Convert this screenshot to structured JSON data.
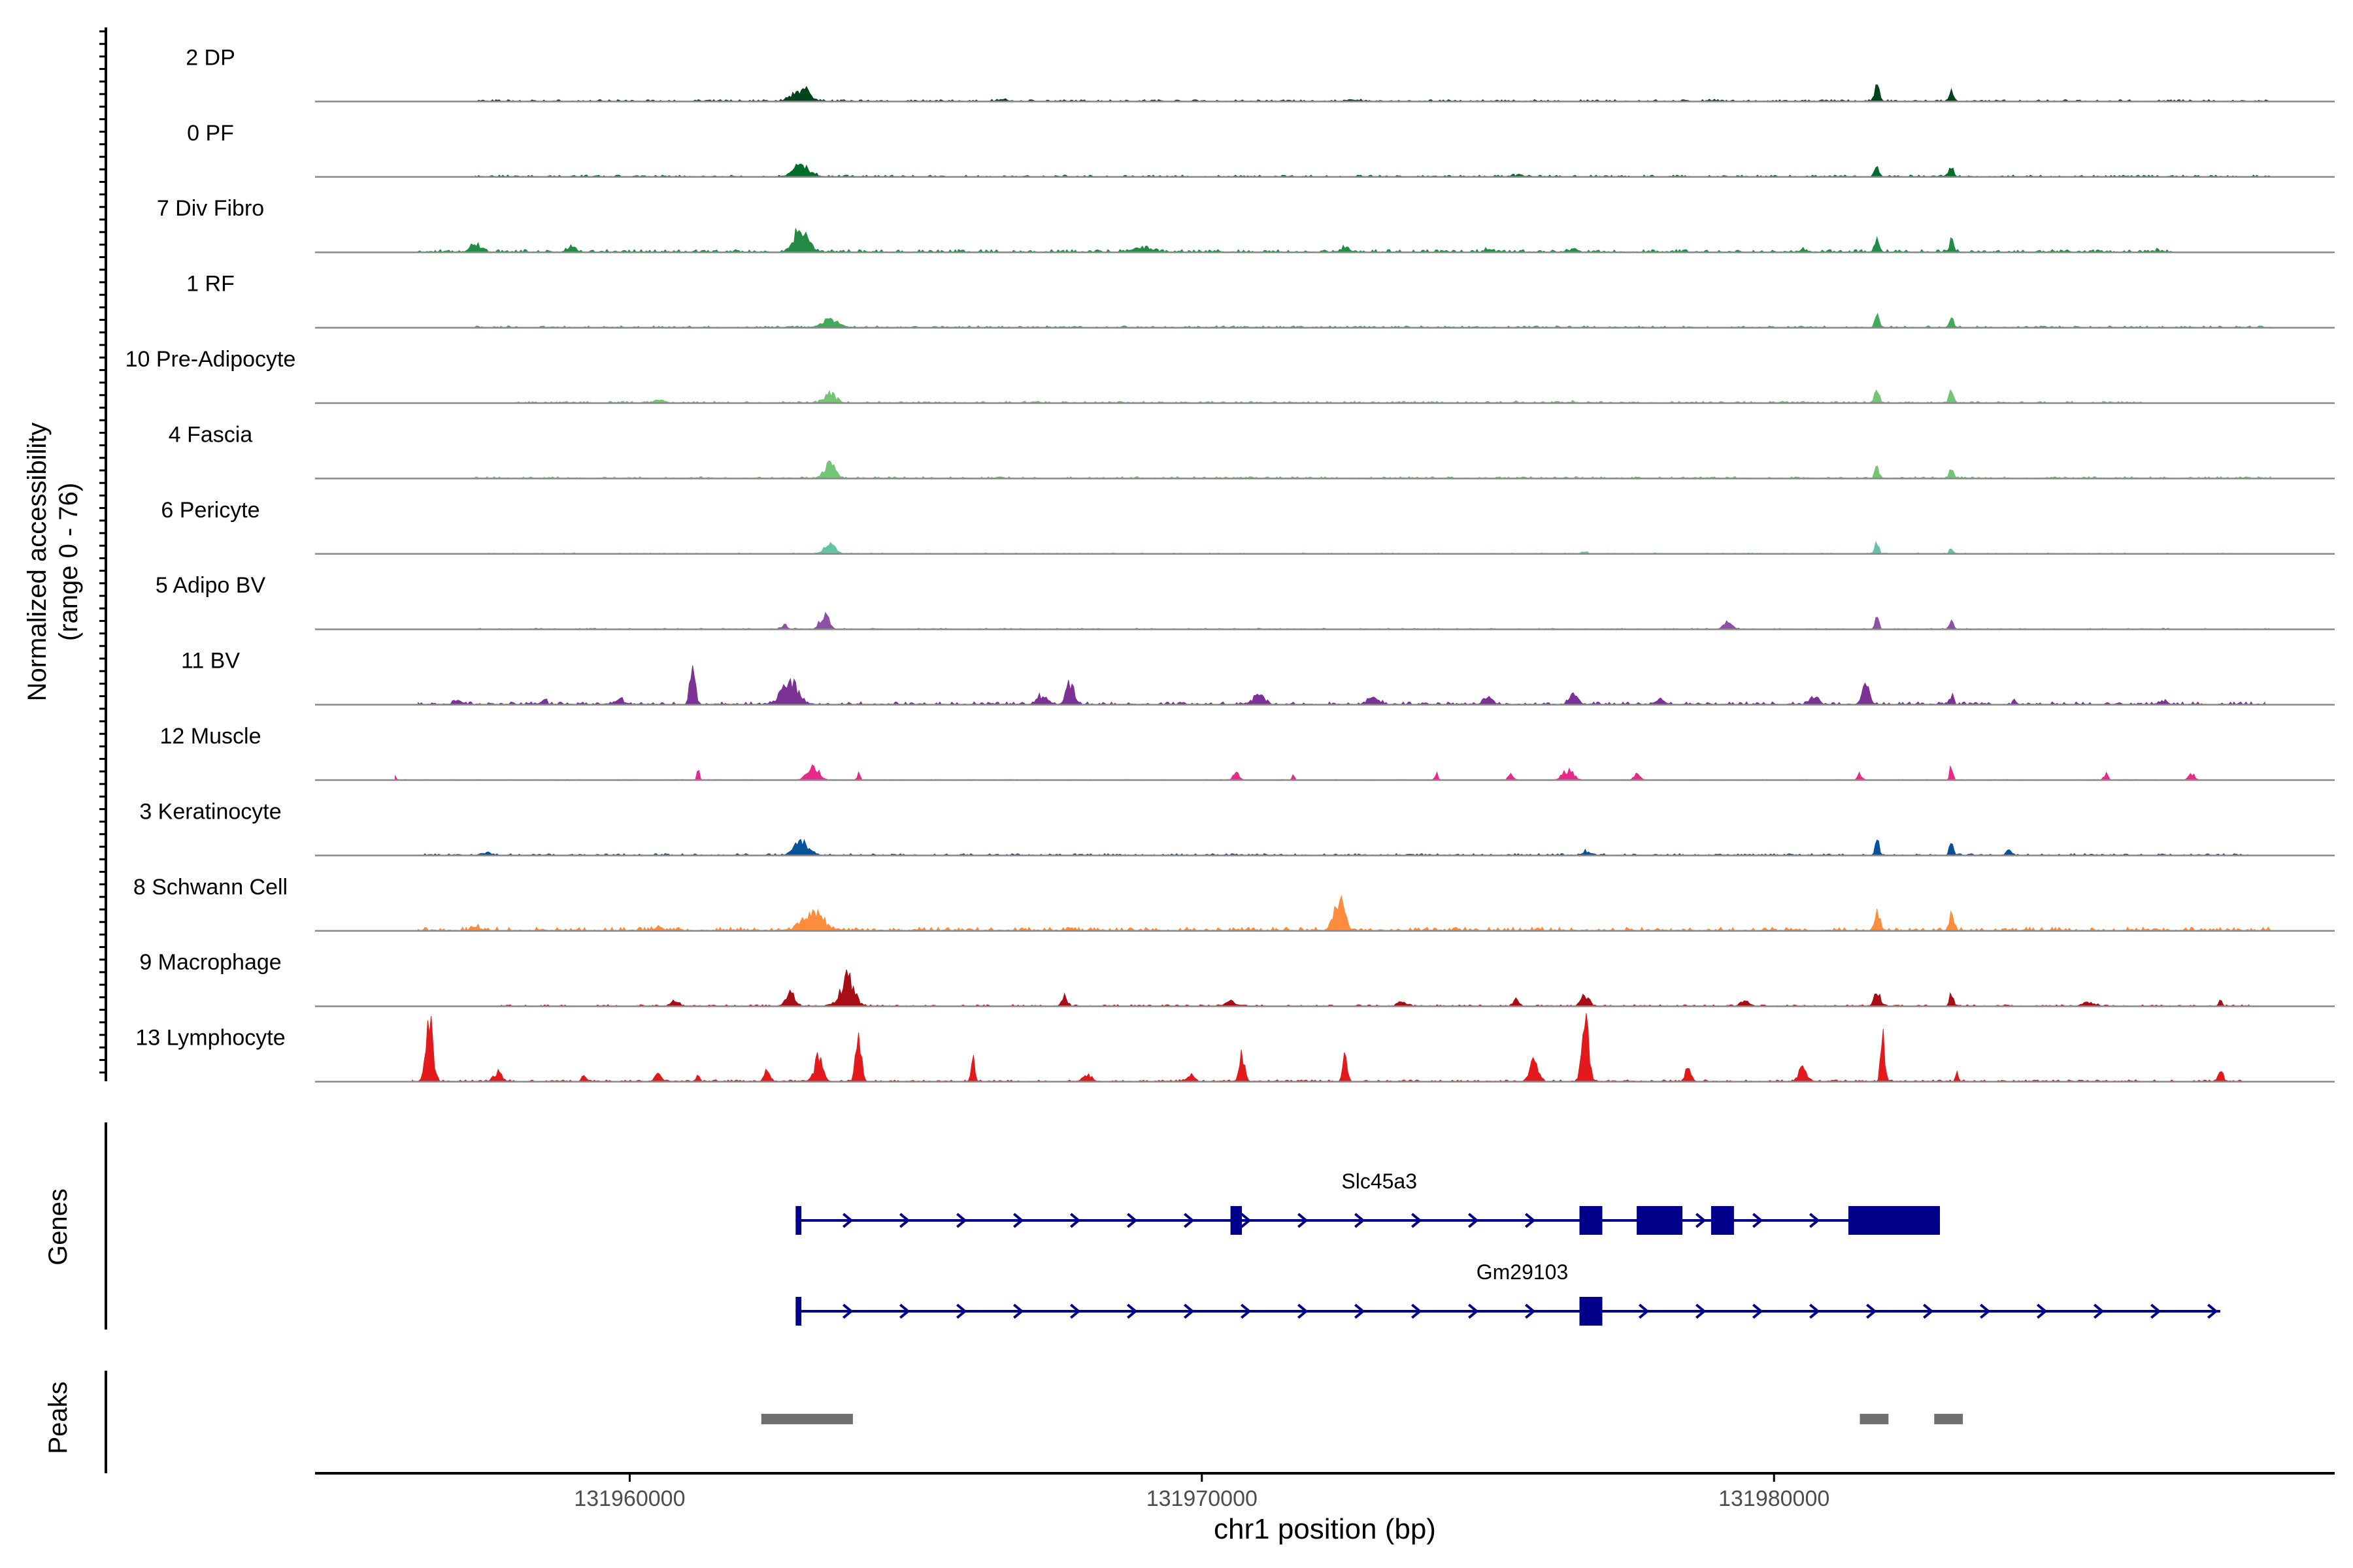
{
  "chart_data": {
    "type": "area",
    "title": "",
    "ylabel_line1": "Normalized accessibility",
    "ylabel_line2": "(range 0 - 76)",
    "yrange": [
      0,
      76
    ],
    "xlabel": "chr1 position (bp)",
    "xlim": [
      131954500,
      131989800
    ],
    "xticks": [
      131960000,
      131970000,
      131980000
    ],
    "xtick_labels": [
      "131960000",
      "131970000",
      "131980000"
    ],
    "tracks": [
      {
        "name": "2 DP",
        "color": "#00441b",
        "baseline": 1.0,
        "start": 131957300,
        "end": 131988700,
        "peaks": [
          [
            131963000,
            8,
            600
          ],
          [
            131981800,
            10,
            160
          ],
          [
            131983100,
            7,
            160
          ],
          [
            131978900,
            1,
            300
          ],
          [
            131966500,
            1,
            400
          ],
          [
            131972700,
            1,
            400
          ]
        ]
      },
      {
        "name": "0 PF",
        "color": "#006d2c",
        "baseline": 1.0,
        "start": 131957300,
        "end": 131988700,
        "peaks": [
          [
            131963000,
            7,
            600
          ],
          [
            131981800,
            8,
            160
          ],
          [
            131983100,
            6,
            160
          ],
          [
            131975500,
            1,
            400
          ]
        ]
      },
      {
        "name": "7 Div Fibro",
        "color": "#238b45",
        "baseline": 1.5,
        "start": 131956300,
        "end": 131987000,
        "peaks": [
          [
            131963000,
            16,
            500
          ],
          [
            131981800,
            8,
            150
          ],
          [
            131983100,
            8,
            150
          ],
          [
            131957300,
            4,
            400
          ],
          [
            131959000,
            3,
            300
          ],
          [
            131969000,
            3,
            500
          ],
          [
            131972500,
            3,
            300
          ],
          [
            131975000,
            2,
            200
          ],
          [
            131976500,
            2,
            300
          ],
          [
            131980500,
            2,
            200
          ],
          [
            131986700,
            3,
            80
          ]
        ]
      },
      {
        "name": "1 RF",
        "color": "#41ab5d",
        "baseline": 1.0,
        "start": 131957300,
        "end": 131988700,
        "peaks": [
          [
            131963500,
            5,
            600
          ],
          [
            131981800,
            8,
            150
          ],
          [
            131983100,
            7,
            150
          ]
        ]
      },
      {
        "name": "10 Pre-Adipocyte",
        "color": "#74c476",
        "baseline": 1.0,
        "start": 131958000,
        "end": 131986500,
        "peaks": [
          [
            131963500,
            6,
            400
          ],
          [
            131981800,
            10,
            150
          ],
          [
            131983100,
            10,
            150
          ],
          [
            131960500,
            2,
            300
          ],
          [
            131975500,
            1,
            100
          ],
          [
            131976500,
            1,
            100
          ]
        ]
      },
      {
        "name": "4 Fascia",
        "color": "#74c476",
        "baseline": 1.0,
        "start": 131957300,
        "end": 131988700,
        "peaks": [
          [
            131963500,
            9,
            400
          ],
          [
            131981800,
            8,
            150
          ],
          [
            131983100,
            7,
            150
          ]
        ]
      },
      {
        "name": "6 Pericyte",
        "color": "#66c2a4",
        "baseline": 0.5,
        "start": 131957300,
        "end": 131988700,
        "peaks": [
          [
            131963500,
            6,
            400
          ],
          [
            131981800,
            10,
            120
          ],
          [
            131983100,
            4,
            120
          ],
          [
            131976700,
            1,
            200
          ]
        ]
      },
      {
        "name": "5 Adipo BV",
        "color": "#8c51a6",
        "baseline": 0.5,
        "start": 131957300,
        "end": 131988700,
        "peaks": [
          [
            131963400,
            10,
            300
          ],
          [
            131979200,
            5,
            300
          ],
          [
            131981800,
            8,
            140
          ],
          [
            131983100,
            6,
            140
          ],
          [
            131962700,
            3,
            200
          ]
        ]
      },
      {
        "name": "11 BV",
        "color": "#7b3294",
        "baseline": 1.5,
        "start": 131956300,
        "end": 131988600,
        "peaks": [
          [
            131961100,
            30,
            180
          ],
          [
            131962800,
            14,
            600
          ],
          [
            131967700,
            13,
            300
          ],
          [
            131967200,
            6,
            300
          ],
          [
            131971000,
            6,
            400
          ],
          [
            131973000,
            4,
            400
          ],
          [
            131975000,
            4,
            300
          ],
          [
            131976500,
            6,
            300
          ],
          [
            131978000,
            3,
            300
          ],
          [
            131980700,
            6,
            300
          ],
          [
            131981600,
            13,
            250
          ],
          [
            131983100,
            5,
            150
          ],
          [
            131984200,
            3,
            100
          ],
          [
            131986800,
            2,
            300
          ],
          [
            131957000,
            2,
            300
          ],
          [
            131959800,
            3,
            400
          ],
          [
            131958500,
            3,
            200
          ]
        ]
      },
      {
        "name": "12 Muscle",
        "color": "#e7298a",
        "baseline": 0.3,
        "start": 131955900,
        "end": 131987900,
        "peaks": [
          [
            131955900,
            5,
            60
          ],
          [
            131961200,
            7,
            80
          ],
          [
            131963200,
            10,
            400
          ],
          [
            131964000,
            5,
            100
          ],
          [
            131970600,
            5,
            200
          ],
          [
            131971600,
            5,
            80
          ],
          [
            131974100,
            5,
            100
          ],
          [
            131975400,
            5,
            150
          ],
          [
            131976400,
            6,
            400
          ],
          [
            131977600,
            5,
            200
          ],
          [
            131981500,
            4,
            150
          ],
          [
            131983100,
            11,
            100
          ],
          [
            131985800,
            4,
            150
          ],
          [
            131987300,
            5,
            200
          ]
        ]
      },
      {
        "name": "3 Keratinocyte",
        "color": "#08519c",
        "baseline": 1.0,
        "start": 131956300,
        "end": 131988300,
        "peaks": [
          [
            131963000,
            9,
            500
          ],
          [
            131981800,
            10,
            140
          ],
          [
            131983100,
            7,
            140
          ],
          [
            131976700,
            3,
            200
          ],
          [
            131984100,
            3,
            200
          ],
          [
            131957500,
            2,
            300
          ]
        ]
      },
      {
        "name": "8 Schwann Cell",
        "color": "#fd8d3c",
        "baseline": 2.0,
        "start": 131956300,
        "end": 131988700,
        "peaks": [
          [
            131972400,
            18,
            400
          ],
          [
            131963200,
            10,
            800
          ],
          [
            131981800,
            16,
            160
          ],
          [
            131983100,
            9,
            160
          ],
          [
            131957300,
            3,
            200
          ],
          [
            131960500,
            2,
            300
          ]
        ]
      },
      {
        "name": "9 Macrophage",
        "color": "#a50f15",
        "baseline": 0.8,
        "start": 131957700,
        "end": 131988300,
        "peaks": [
          [
            131963800,
            18,
            500
          ],
          [
            131962800,
            10,
            300
          ],
          [
            131967600,
            6,
            200
          ],
          [
            131976700,
            7,
            300
          ],
          [
            131981800,
            12,
            200
          ],
          [
            131983100,
            9,
            140
          ],
          [
            131987800,
            4,
            100
          ],
          [
            131970500,
            3,
            300
          ],
          [
            131973500,
            3,
            300
          ],
          [
            131975500,
            4,
            200
          ],
          [
            131979500,
            3,
            300
          ],
          [
            131985500,
            3,
            400
          ],
          [
            131960800,
            3,
            300
          ]
        ]
      },
      {
        "name": "13 Lymphocyte",
        "color": "#e31a1c",
        "baseline": 1.0,
        "start": 131956200,
        "end": 131988200,
        "peaks": [
          [
            131956500,
            40,
            250
          ],
          [
            131964000,
            28,
            200
          ],
          [
            131976700,
            38,
            250
          ],
          [
            131981900,
            28,
            150
          ],
          [
            131963300,
            15,
            300
          ],
          [
            131970700,
            16,
            200
          ],
          [
            131972500,
            16,
            150
          ],
          [
            131975800,
            14,
            300
          ],
          [
            131966000,
            14,
            120
          ],
          [
            131957700,
            6,
            300
          ],
          [
            131960500,
            6,
            200
          ],
          [
            131962400,
            6,
            200
          ],
          [
            131978500,
            9,
            200
          ],
          [
            131980500,
            8,
            300
          ],
          [
            131983200,
            5,
            100
          ],
          [
            131987800,
            6,
            200
          ],
          [
            131959200,
            4,
            150
          ],
          [
            131961200,
            4,
            100
          ],
          [
            131968000,
            4,
            300
          ],
          [
            131969800,
            4,
            300
          ]
        ]
      }
    ],
    "gene_track_label": "Genes",
    "genes": [
      {
        "name": "Slc45a3",
        "strand": "+",
        "start": 131962900,
        "end": 131982900,
        "exons": [
          [
            131962900,
            131963000
          ],
          [
            131970500,
            131970700
          ],
          [
            131976600,
            131977000
          ],
          [
            131977600,
            131978400
          ],
          [
            131978900,
            131979300
          ],
          [
            131981300,
            131982900
          ]
        ]
      },
      {
        "name": "Gm29103",
        "strand": "+",
        "start": 131962900,
        "end": 131987800,
        "exons": [
          [
            131962900,
            131963000
          ],
          [
            131976600,
            131977000
          ]
        ]
      }
    ],
    "peak_track_label": "Peaks",
    "peak_regions": [
      [
        131962300,
        131963900
      ],
      [
        131981500,
        131982000
      ],
      [
        131982800,
        131983300
      ]
    ],
    "colors": {
      "gene": "#00008b",
      "peak": "#707070",
      "axis": "#000000",
      "baseline": "#888888"
    }
  }
}
